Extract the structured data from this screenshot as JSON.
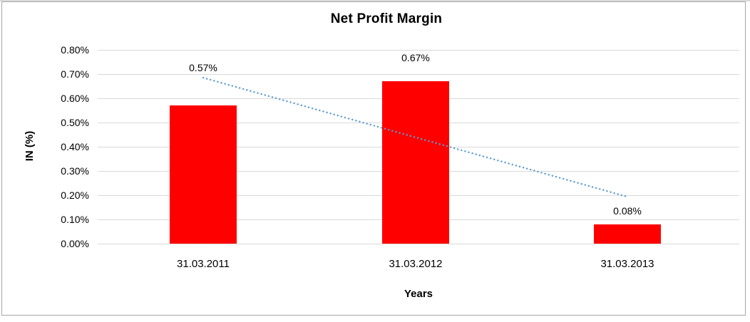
{
  "window": {
    "background_color": "#ffffff",
    "border_color": "#a6a6a6"
  },
  "chart_data": {
    "type": "bar",
    "title": "Net Profit Margin",
    "categories": [
      "31.03.2011",
      "31.03.2012",
      "31.03.2013"
    ],
    "values": [
      0.57,
      0.67,
      0.08
    ],
    "data_labels": [
      "0.57%",
      "0.67%",
      "0.08%"
    ],
    "xlabel": "Years",
    "ylabel": "IN (%)",
    "ylim": [
      0,
      0.8
    ],
    "ytick_step": 0.1,
    "ytick_labels": [
      "0.00%",
      "0.10%",
      "0.20%",
      "0.30%",
      "0.40%",
      "0.50%",
      "0.60%",
      "0.70%",
      "0.80%"
    ],
    "grid": "horizontal",
    "legend": "none",
    "bar_color": "#ff0000",
    "gridline_color": "#d9d9d9",
    "text_color": "#000000",
    "trendline": {
      "type": "linear",
      "style": "dotted",
      "color": "#5b9bd5",
      "start_value": 0.685,
      "end_value": 0.195
    }
  }
}
